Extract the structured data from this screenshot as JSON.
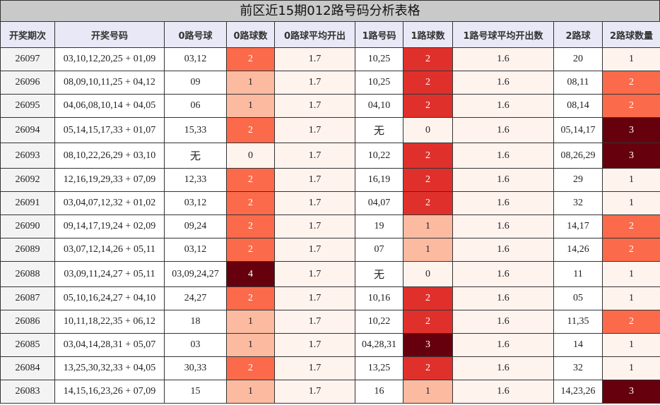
{
  "title": "前区近15期012路号码分析表格",
  "headers": [
    "开奖期次",
    "开奖号码",
    "0路号球",
    "0路球数",
    "0路球平均开出",
    "1路号码",
    "1路球数",
    "1路号球平均开出数",
    "2路球",
    "2路球数量"
  ],
  "rows": [
    [
      "26097",
      "03,10,12,20,25 + 01,09",
      "03,12",
      "2",
      "1.7",
      "10,25",
      "2",
      "1.6",
      "20",
      "1"
    ],
    [
      "26096",
      "08,09,10,11,25 + 04,12",
      "09",
      "1",
      "1.7",
      "10,25",
      "2",
      "1.6",
      "08,11",
      "2"
    ],
    [
      "26095",
      "04,06,08,10,14 + 04,05",
      "06",
      "1",
      "1.7",
      "04,10",
      "2",
      "1.6",
      "08,14",
      "2"
    ],
    [
      "26094",
      "05,14,15,17,33 + 01,07",
      "15,33",
      "2",
      "1.7",
      "无",
      "0",
      "1.6",
      "05,14,17",
      "3"
    ],
    [
      "26093",
      "08,10,22,26,29 + 03,10",
      "无",
      "0",
      "1.7",
      "10,22",
      "2",
      "1.6",
      "08,26,29",
      "3"
    ],
    [
      "26092",
      "12,16,19,29,33 + 07,09",
      "12,33",
      "2",
      "1.7",
      "16,19",
      "2",
      "1.6",
      "29",
      "1"
    ],
    [
      "26091",
      "03,04,07,12,32 + 01,02",
      "03,12",
      "2",
      "1.7",
      "04,07",
      "2",
      "1.6",
      "32",
      "1"
    ],
    [
      "26090",
      "09,14,17,19,24 + 02,09",
      "09,24",
      "2",
      "1.7",
      "19",
      "1",
      "1.6",
      "14,17",
      "2"
    ],
    [
      "26089",
      "03,07,12,14,26 + 05,11",
      "03,12",
      "2",
      "1.7",
      "07",
      "1",
      "1.6",
      "14,26",
      "2"
    ],
    [
      "26088",
      "03,09,11,24,27 + 05,11",
      "03,09,24,27",
      "4",
      "1.7",
      "无",
      "0",
      "1.6",
      "11",
      "1"
    ],
    [
      "26087",
      "05,10,16,24,27 + 04,10",
      "24,27",
      "2",
      "1.7",
      "10,16",
      "2",
      "1.6",
      "05",
      "1"
    ],
    [
      "26086",
      "10,11,18,22,35 + 06,12",
      "18",
      "1",
      "1.7",
      "10,22",
      "2",
      "1.6",
      "11,35",
      "2"
    ],
    [
      "26085",
      "03,04,14,28,31 + 05,07",
      "03",
      "1",
      "1.7",
      "04,28,31",
      "3",
      "1.6",
      "14",
      "1"
    ],
    [
      "26084",
      "13,25,30,32,33 + 04,05",
      "30,33",
      "2",
      "1.7",
      "13,25",
      "2",
      "1.6",
      "32",
      "1"
    ],
    [
      "26083",
      "14,15,16,23,26 + 07,09",
      "15",
      "1",
      "1.7",
      "16",
      "1",
      "1.6",
      "14,23,26",
      "3"
    ]
  ],
  "colors": {
    "level_0": "#fff3ee",
    "level_1": "#fcbba1",
    "level_2_zero_col": "#fb6a4a",
    "level_2_one_col": "#e0302c",
    "level_2_two_col": "#fb6a4a",
    "level_3": "#67000d",
    "level_4": "#67000d"
  }
}
